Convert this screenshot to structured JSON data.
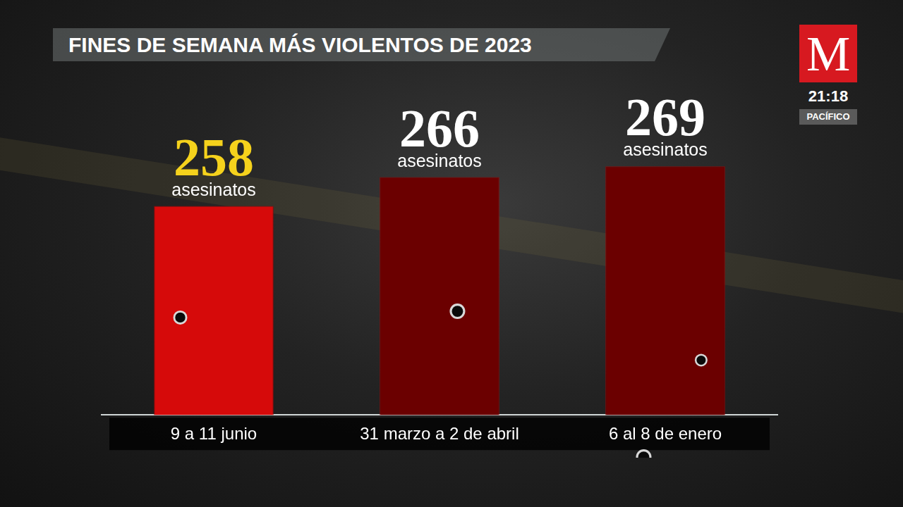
{
  "chart_data": {
    "type": "bar",
    "title": "FINES DE SEMANA MÁS VIOLENTOS DE 2023",
    "categories": [
      "9 a 11 junio",
      "31 marzo a 2 de abril",
      "6 al 8 de enero"
    ],
    "values": [
      258,
      266,
      269
    ],
    "colors": [
      "#d60a0a",
      "#6b0000",
      "#6b0000"
    ],
    "ylim": [
      200,
      280
    ],
    "grid": false,
    "data_labels": true,
    "tick_labels": "x",
    "unit_label": "asesinatos"
  },
  "logo": {
    "letter": "M",
    "time": "21:18",
    "zone": "PACÍFICO"
  }
}
